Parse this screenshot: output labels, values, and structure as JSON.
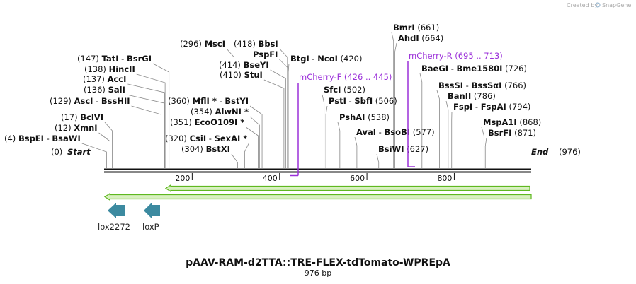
{
  "credit": {
    "prefix": "Created by",
    "brand": "SnapGene"
  },
  "map": {
    "title": "pAAV-RAM-d2TTA::TRE-FLEX-tdTomato-WPREpA",
    "length_label": "976 bp",
    "length": 976,
    "start_label": "Start",
    "end_label": "End",
    "end_pos_label": "(976)",
    "start_pos_label": "(0)",
    "ticks": [
      200,
      400,
      600,
      800
    ],
    "enzymes": [
      {
        "pos": 4,
        "text": "(4)",
        "names": [
          "BspEI",
          "BsaWI"
        ],
        "side": "left"
      },
      {
        "pos": 12,
        "text": "(12)",
        "names": [
          "XmnI"
        ],
        "side": "left"
      },
      {
        "pos": 17,
        "text": "(17)",
        "names": [
          "BclVI"
        ],
        "side": "left"
      },
      {
        "pos": 129,
        "text": "(129)",
        "names": [
          "AscI",
          "BssHII"
        ],
        "side": "left"
      },
      {
        "pos": 136,
        "text": "(136)",
        "names": [
          "SalI"
        ],
        "side": "left"
      },
      {
        "pos": 137,
        "text": "(137)",
        "names": [
          "AccI"
        ],
        "side": "left"
      },
      {
        "pos": 138,
        "text": "(138)",
        "names": [
          "HincII"
        ],
        "side": "left"
      },
      {
        "pos": 147,
        "text": "(147)",
        "names": [
          "TatI",
          "BsrGI"
        ],
        "side": "left"
      },
      {
        "pos": 296,
        "text": "(296)",
        "names": [
          "MscI"
        ],
        "side": "left"
      },
      {
        "pos": 304,
        "text": "(304)",
        "names": [
          "BstXI"
        ],
        "side": "left"
      },
      {
        "pos": 320,
        "text": "(320)",
        "names": [
          "CsiI",
          "SexAI *"
        ],
        "side": "left"
      },
      {
        "pos": 351,
        "text": "(351)",
        "names": [
          "EcoO109I *"
        ],
        "side": "left"
      },
      {
        "pos": 354,
        "text": "(354)",
        "names": [
          "AlwNI *"
        ],
        "side": "left"
      },
      {
        "pos": 360,
        "text": "(360)",
        "names": [
          "MflI *",
          "BstYI"
        ],
        "side": "left"
      },
      {
        "pos": 410,
        "text": "(410)",
        "names": [
          "StuI"
        ],
        "side": "left"
      },
      {
        "pos": 414,
        "text": "(414)",
        "names": [
          "BseYI"
        ],
        "side": "left"
      },
      {
        "pos": 418,
        "text": "(418)",
        "names": [
          "BbsI"
        ],
        "side": "left"
      },
      {
        "pos": 419,
        "text": "",
        "names": [
          "PspFI"
        ],
        "side": "left"
      },
      {
        "pos": 420,
        "text": "(420)",
        "names": [
          "BtgI",
          "NcoI"
        ],
        "side": "right"
      },
      {
        "pos": 502,
        "text": "(502)",
        "names": [
          "SfcI"
        ],
        "side": "right"
      },
      {
        "pos": 506,
        "text": "(506)",
        "names": [
          "PstI",
          "SbfI"
        ],
        "side": "right"
      },
      {
        "pos": 538,
        "text": "(538)",
        "names": [
          "PshAI"
        ],
        "side": "right"
      },
      {
        "pos": 577,
        "text": "(577)",
        "names": [
          "AvaI",
          "BsoBI"
        ],
        "side": "right"
      },
      {
        "pos": 627,
        "text": "(627)",
        "names": [
          "BsiWI"
        ],
        "side": "right"
      },
      {
        "pos": 661,
        "text": "(661)",
        "names": [
          "BmrI"
        ],
        "side": "right"
      },
      {
        "pos": 664,
        "text": "(664)",
        "names": [
          "AhdI"
        ],
        "side": "right"
      },
      {
        "pos": 726,
        "text": "(726)",
        "names": [
          "BaeGI",
          "Bme1580I"
        ],
        "side": "right"
      },
      {
        "pos": 766,
        "text": "(766)",
        "names": [
          "BssSI",
          "BssSαI"
        ],
        "side": "right"
      },
      {
        "pos": 786,
        "text": "(786)",
        "names": [
          "BanII"
        ],
        "side": "right"
      },
      {
        "pos": 794,
        "text": "(794)",
        "names": [
          "FspI",
          "FspAI"
        ],
        "side": "right"
      },
      {
        "pos": 868,
        "text": "(868)",
        "names": [
          "MspA1I"
        ],
        "side": "right"
      },
      {
        "pos": 871,
        "text": "(871)",
        "names": [
          "BsrFI"
        ],
        "side": "right"
      }
    ],
    "primers": [
      {
        "name": "mCherry-F",
        "range": "(426 .. 445)",
        "from": 426,
        "to": 445
      },
      {
        "name": "mCherry-R",
        "range": "(695 .. 713)",
        "from": 695,
        "to": 713
      }
    ],
    "features": [
      {
        "name": "lox2272",
        "type": "protein_bind",
        "pos": 12
      },
      {
        "name": "loxP",
        "type": "protein_bind",
        "pos": 95
      }
    ],
    "colors": {
      "primer": "#9b30d9",
      "feature_arrow": "#3c8aa0",
      "orf_fill": "#d8f0c0",
      "orf_stroke": "#5fb820"
    }
  }
}
